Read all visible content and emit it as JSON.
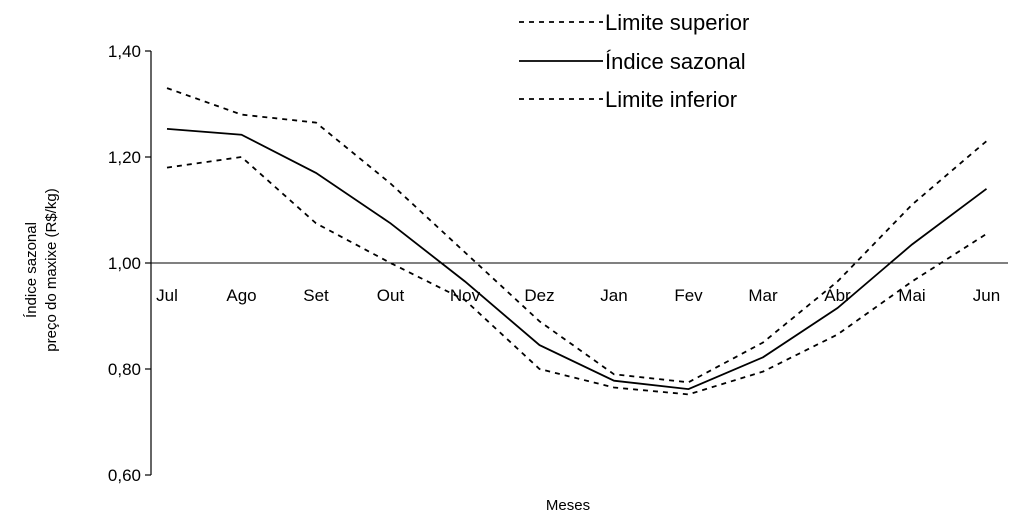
{
  "chart_data": {
    "type": "line",
    "title": "",
    "xlabel": "Meses",
    "ylabel_lines": [
      "Índice sazonal",
      "preço do maxixe (R$/kg)"
    ],
    "categories": [
      "Jul",
      "Ago",
      "Set",
      "Out",
      "Nov",
      "Dez",
      "Jan",
      "Fev",
      "Mar",
      "Abr",
      "Mai",
      "Jun"
    ],
    "ylim": [
      0.6,
      1.4
    ],
    "yticks": [
      0.6,
      0.8,
      1.0,
      1.2,
      1.4
    ],
    "ytick_labels": [
      "0,60",
      "0,80",
      "1,00",
      "1,20",
      "1,40"
    ],
    "reference_line": 1.0,
    "grid": false,
    "legend_position": "top-right",
    "series": [
      {
        "name": "Limite superior",
        "style": "dashed",
        "color": "#000000",
        "values": [
          1.33,
          1.28,
          1.265,
          1.15,
          1.02,
          0.89,
          0.79,
          0.775,
          0.85,
          0.965,
          1.11,
          1.23
        ]
      },
      {
        "name": "Índice sazonal",
        "style": "solid",
        "color": "#000000",
        "values": [
          1.253,
          1.242,
          1.17,
          1.075,
          0.965,
          0.845,
          0.778,
          0.762,
          0.822,
          0.915,
          1.035,
          1.14
        ]
      },
      {
        "name": "Limite inferior",
        "style": "dashed",
        "color": "#000000",
        "values": [
          1.18,
          1.2,
          1.075,
          1.0,
          0.93,
          0.8,
          0.765,
          0.752,
          0.795,
          0.865,
          0.965,
          1.055
        ]
      }
    ]
  }
}
